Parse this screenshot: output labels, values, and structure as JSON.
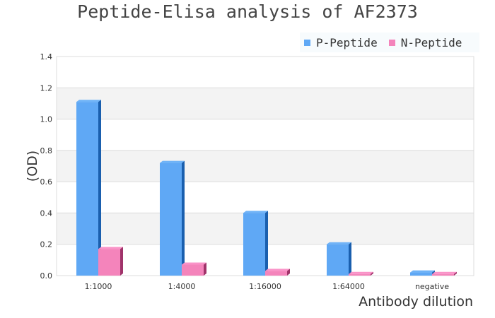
{
  "chart_data": {
    "type": "bar",
    "title": "Peptide-Elisa analysis of AF2373",
    "xlabel": "Antibody dilution",
    "ylabel": "(OD)",
    "ylim": [
      0,
      1.4
    ],
    "yticks": [
      "0.0",
      "0.2",
      "0.4",
      "0.6",
      "0.8",
      "1.0",
      "1.2",
      "1.4"
    ],
    "grid": true,
    "legend_position": "top-right",
    "categories": [
      "1:1000",
      "1:4000",
      "1:16000",
      "1:64000",
      "negative"
    ],
    "series": [
      {
        "name": "P-Peptide",
        "color": "#5fa8f5",
        "values": [
          1.11,
          0.72,
          0.4,
          0.2,
          0.02
        ]
      },
      {
        "name": "N-Peptide",
        "color": "#f484bb",
        "values": [
          0.17,
          0.07,
          0.03,
          0.01,
          0.01
        ]
      }
    ]
  }
}
